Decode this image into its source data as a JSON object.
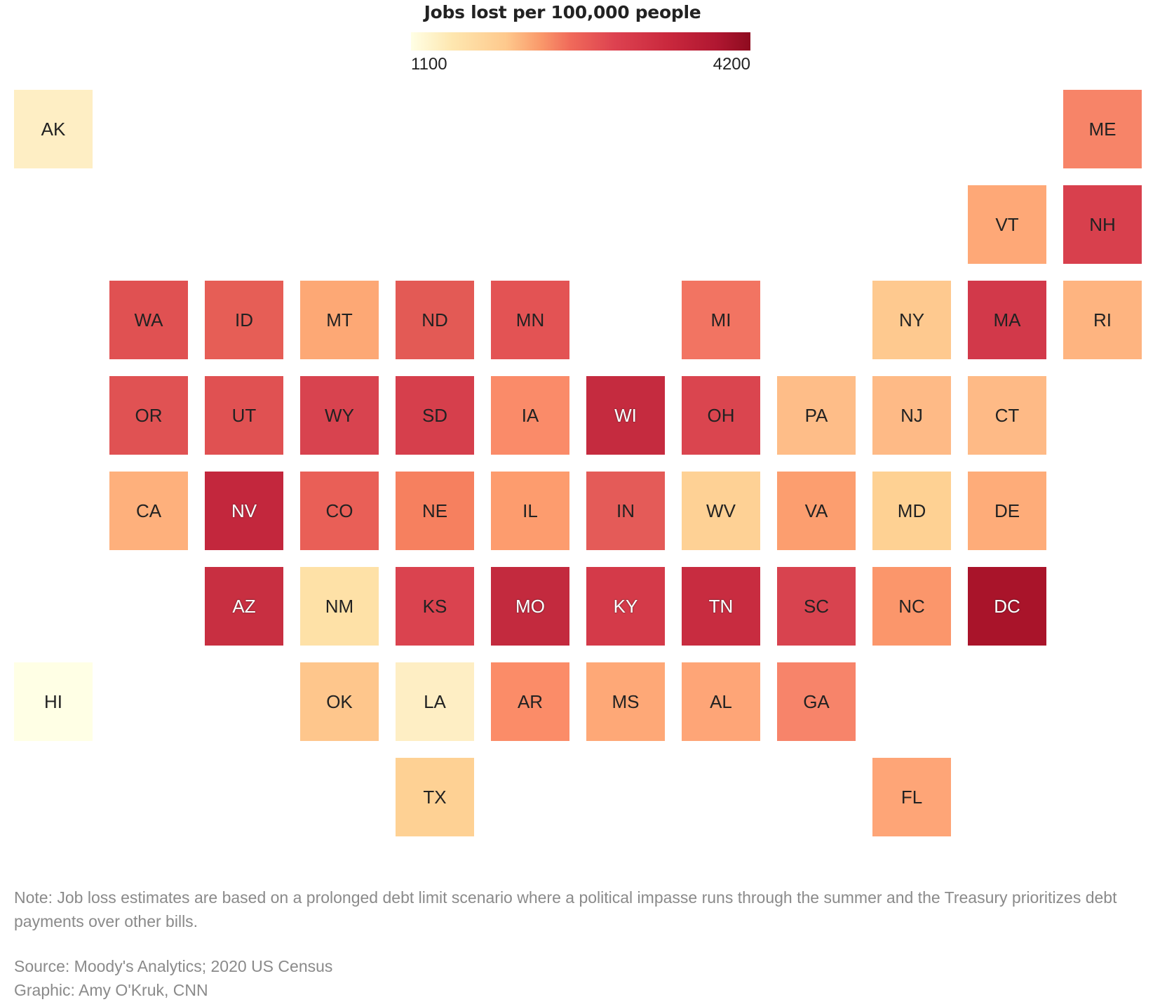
{
  "legend": {
    "title": "Jobs lost per 100,000 people",
    "min_label": "1100",
    "max_label": "4200",
    "colors": [
      "#ffffe5",
      "#fee7b0",
      "#fec98d",
      "#fa9a6b",
      "#f06a5a",
      "#dd4250",
      "#c9283d",
      "#b01731",
      "#8e0b1f"
    ]
  },
  "chart_data": {
    "type": "heatmap",
    "title": "Jobs lost per 100,000 people",
    "value_range": [
      1100,
      4200
    ],
    "tiles": [
      {
        "state": "AK",
        "row": 0,
        "col": 0,
        "color": "#feeec4"
      },
      {
        "state": "ME",
        "row": 0,
        "col": 11,
        "color": "#f78468"
      },
      {
        "state": "VT",
        "row": 1,
        "col": 10,
        "color": "#fea877"
      },
      {
        "state": "NH",
        "row": 1,
        "col": 11,
        "color": "#d8404d"
      },
      {
        "state": "WA",
        "row": 2,
        "col": 1,
        "color": "#e05152"
      },
      {
        "state": "ID",
        "row": 2,
        "col": 2,
        "color": "#e65e56"
      },
      {
        "state": "MT",
        "row": 2,
        "col": 3,
        "color": "#fda875"
      },
      {
        "state": "ND",
        "row": 2,
        "col": 4,
        "color": "#e35a55"
      },
      {
        "state": "MN",
        "row": 2,
        "col": 5,
        "color": "#e35354"
      },
      {
        "state": "MI",
        "row": 2,
        "col": 7,
        "color": "#f27462"
      },
      {
        "state": "NY",
        "row": 2,
        "col": 9,
        "color": "#fec98f"
      },
      {
        "state": "MA",
        "row": 2,
        "col": 10,
        "color": "#d2394a"
      },
      {
        "state": "RI",
        "row": 2,
        "col": 11,
        "color": "#feb480"
      },
      {
        "state": "OR",
        "row": 3,
        "col": 1,
        "color": "#e05253"
      },
      {
        "state": "UT",
        "row": 3,
        "col": 2,
        "color": "#e05152"
      },
      {
        "state": "WY",
        "row": 3,
        "col": 3,
        "color": "#d8434f"
      },
      {
        "state": "SD",
        "row": 3,
        "col": 4,
        "color": "#d63f4c"
      },
      {
        "state": "IA",
        "row": 3,
        "col": 5,
        "color": "#fa8b69"
      },
      {
        "state": "WI",
        "row": 3,
        "col": 6,
        "color": "#c52b3f"
      },
      {
        "state": "OH",
        "row": 3,
        "col": 7,
        "color": "#da454f"
      },
      {
        "state": "PA",
        "row": 3,
        "col": 8,
        "color": "#febd88"
      },
      {
        "state": "NJ",
        "row": 3,
        "col": 9,
        "color": "#feba86"
      },
      {
        "state": "CT",
        "row": 3,
        "col": 10,
        "color": "#feba86"
      },
      {
        "state": "CA",
        "row": 4,
        "col": 1,
        "color": "#feb07c"
      },
      {
        "state": "NV",
        "row": 4,
        "col": 2,
        "color": "#c3273d"
      },
      {
        "state": "CO",
        "row": 4,
        "col": 3,
        "color": "#e95f57"
      },
      {
        "state": "NE",
        "row": 4,
        "col": 4,
        "color": "#f6805f"
      },
      {
        "state": "IL",
        "row": 4,
        "col": 5,
        "color": "#fd9c6e"
      },
      {
        "state": "IN",
        "row": 4,
        "col": 6,
        "color": "#e45b58"
      },
      {
        "state": "WV",
        "row": 4,
        "col": 7,
        "color": "#fed195"
      },
      {
        "state": "VA",
        "row": 4,
        "col": 8,
        "color": "#fc9e6f"
      },
      {
        "state": "MD",
        "row": 4,
        "col": 9,
        "color": "#fed193"
      },
      {
        "state": "DE",
        "row": 4,
        "col": 10,
        "color": "#feac79"
      },
      {
        "state": "AZ",
        "row": 5,
        "col": 2,
        "color": "#c82f41"
      },
      {
        "state": "NM",
        "row": 5,
        "col": 3,
        "color": "#fee1a7"
      },
      {
        "state": "KS",
        "row": 5,
        "col": 4,
        "color": "#da434f"
      },
      {
        "state": "MO",
        "row": 5,
        "col": 5,
        "color": "#c32a3e"
      },
      {
        "state": "KY",
        "row": 5,
        "col": 6,
        "color": "#d43a49"
      },
      {
        "state": "TN",
        "row": 5,
        "col": 7,
        "color": "#c82c40"
      },
      {
        "state": "SC",
        "row": 5,
        "col": 8,
        "color": "#d8434f"
      },
      {
        "state": "NC",
        "row": 5,
        "col": 9,
        "color": "#fb966b"
      },
      {
        "state": "DC",
        "row": 5,
        "col": 10,
        "color": "#a9142a"
      },
      {
        "state": "HI",
        "row": 6,
        "col": 0,
        "color": "#ffffe5"
      },
      {
        "state": "OK",
        "row": 6,
        "col": 3,
        "color": "#fec68c"
      },
      {
        "state": "LA",
        "row": 6,
        "col": 4,
        "color": "#feeec4"
      },
      {
        "state": "AR",
        "row": 6,
        "col": 5,
        "color": "#fb8c68"
      },
      {
        "state": "MS",
        "row": 6,
        "col": 6,
        "color": "#fea877"
      },
      {
        "state": "AL",
        "row": 6,
        "col": 7,
        "color": "#fea577"
      },
      {
        "state": "GA",
        "row": 6,
        "col": 8,
        "color": "#f7846a"
      },
      {
        "state": "TX",
        "row": 7,
        "col": 4,
        "color": "#fed194"
      },
      {
        "state": "FL",
        "row": 7,
        "col": 9,
        "color": "#fea577"
      }
    ]
  },
  "footer": {
    "note": "Note: Job loss estimates are based on a prolonged debt limit scenario where a political impasse runs through the summer and the Treasury prioritizes debt payments over other bills.",
    "source": "Source: Moody's Analytics; 2020 US Census",
    "credit": "Graphic: Amy O'Kruk, CNN"
  }
}
